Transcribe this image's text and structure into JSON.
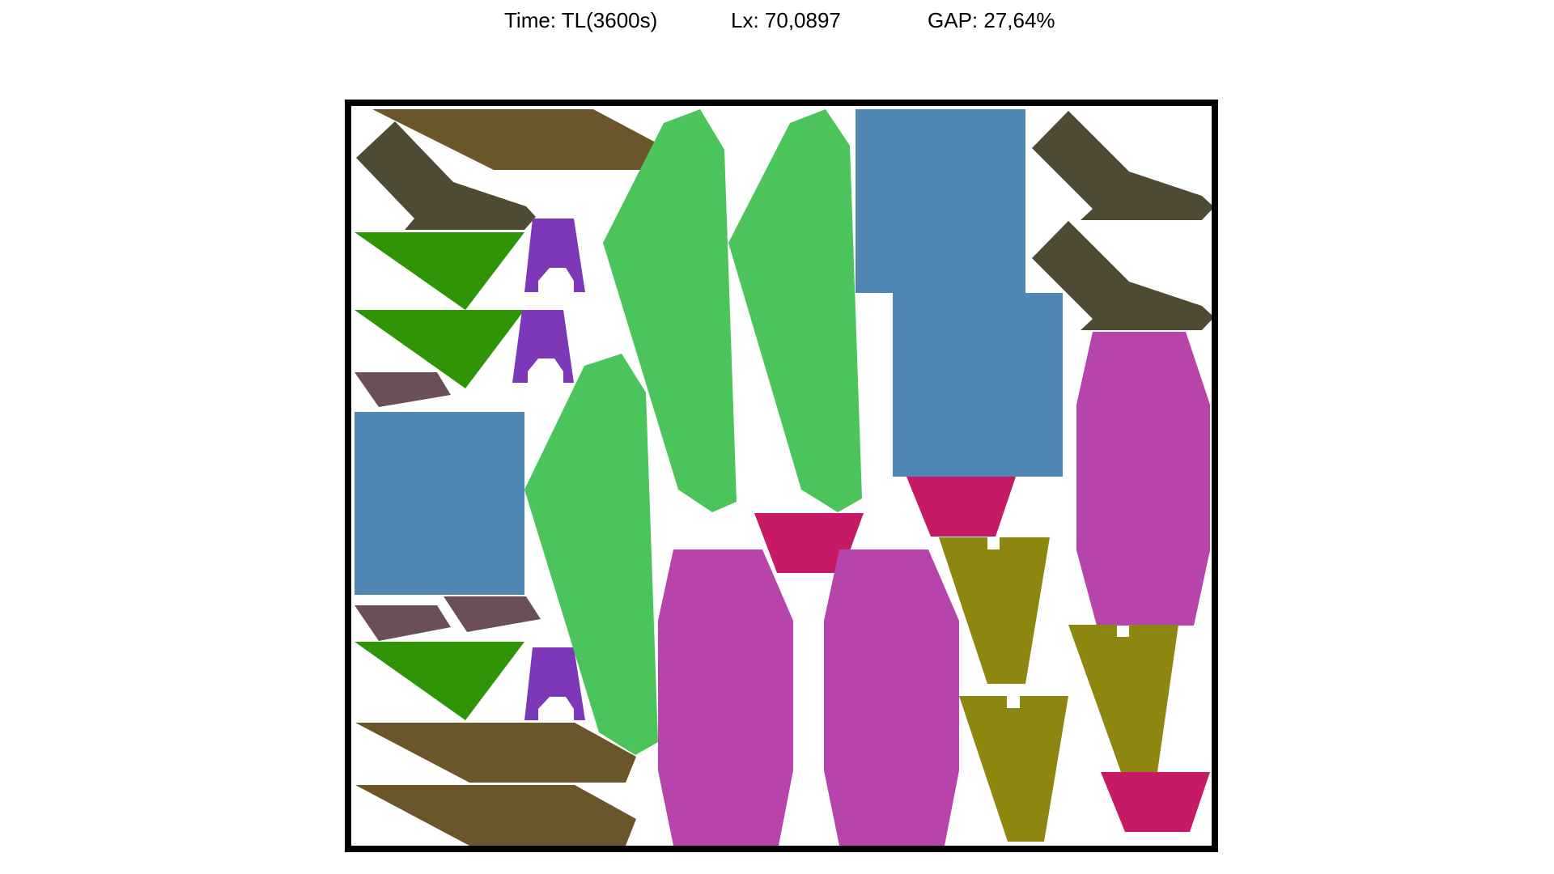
{
  "header": {
    "time": "Time: TL(3600s)",
    "lx": "Lx: 70,0897",
    "gap": "GAP: 27,64%"
  },
  "colors": {
    "border": "#000000",
    "background": "#ffffff",
    "brown": "#6b562c",
    "dark_olive": "#4f4a34",
    "dark_green": "#2f9507",
    "purple": "#7d38b8",
    "mauve": "#6a5056",
    "steel_blue": "#4f86b3",
    "light_green": "#4bc45b",
    "crimson": "#c71a66",
    "magenta": "#b744aa",
    "olive": "#8d8710"
  }
}
